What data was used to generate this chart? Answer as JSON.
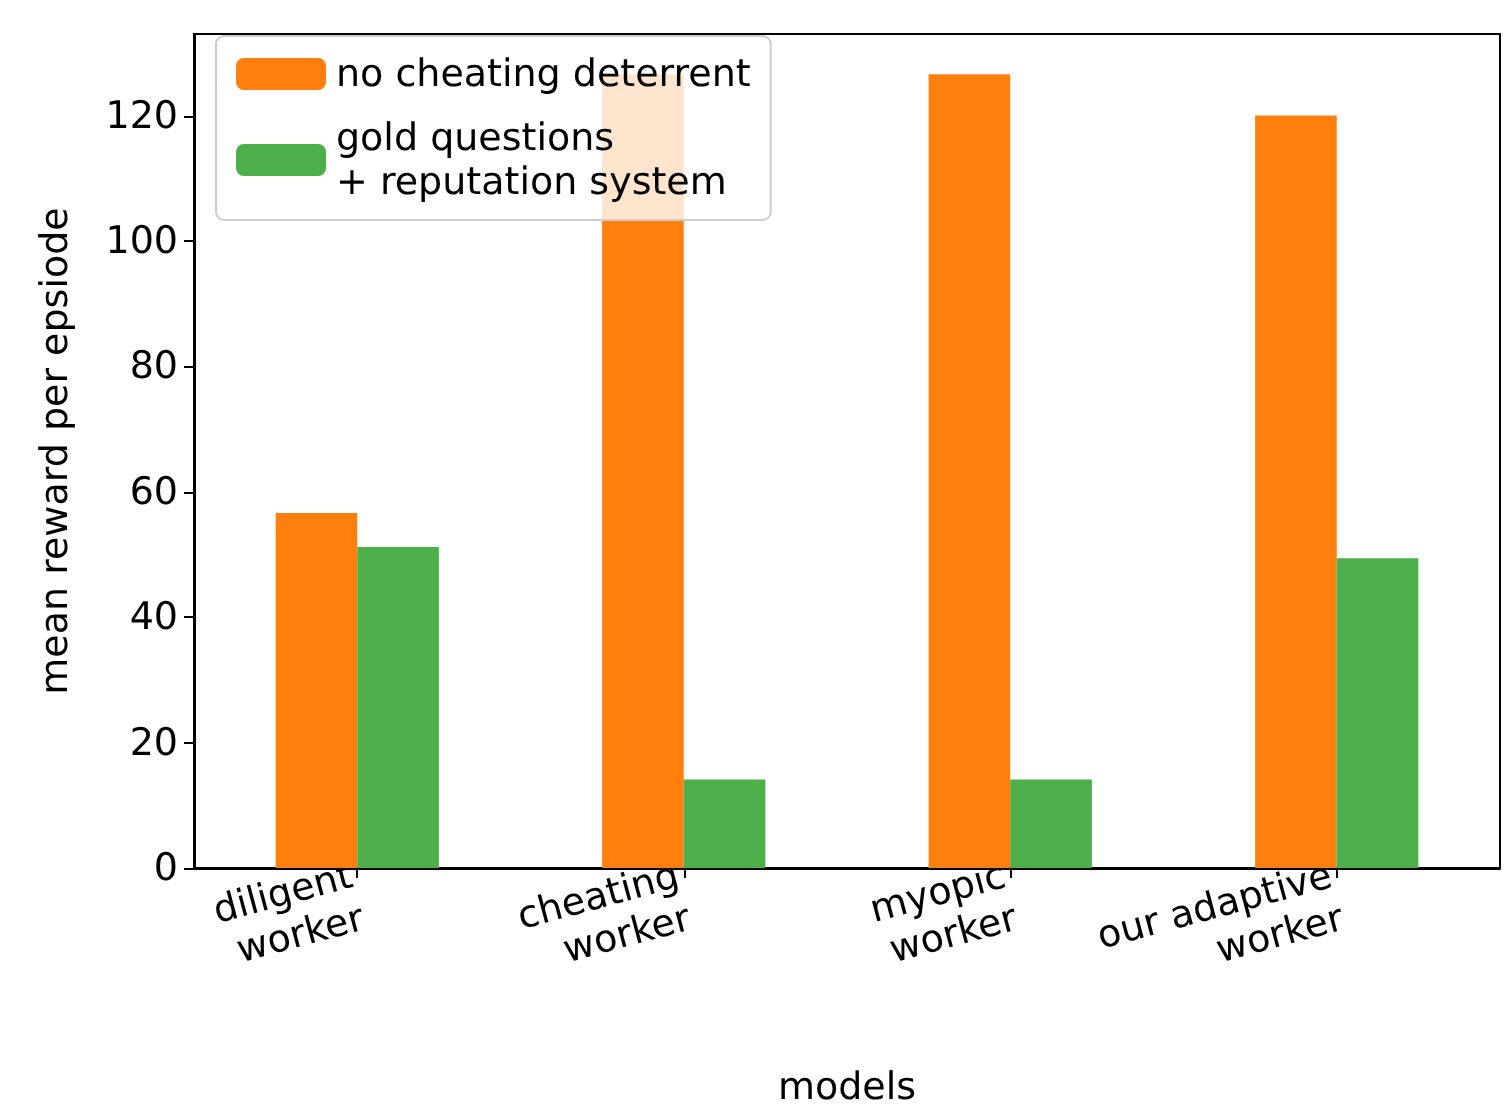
{
  "chart_data": {
    "type": "bar",
    "xlabel": "models",
    "ylabel": "mean reward per epsiode",
    "categories": [
      "diligent\nworker",
      "cheating\nworker",
      "myopic\nworker",
      "our adaptive\nworker"
    ],
    "series": [
      {
        "name": "no cheating deterrent",
        "color": "#ff7f0e",
        "values": [
          56.6,
          126.6,
          126.6,
          120.0
        ]
      },
      {
        "name": "gold questions\n+ reputation system",
        "color": "#4daf4a",
        "values": [
          51.2,
          14.1,
          14.1,
          49.4
        ]
      }
    ],
    "ylim": [
      0,
      133
    ],
    "yticks": [
      0,
      20,
      40,
      60,
      80,
      100,
      120
    ],
    "grid": false,
    "legend": "top left"
  }
}
